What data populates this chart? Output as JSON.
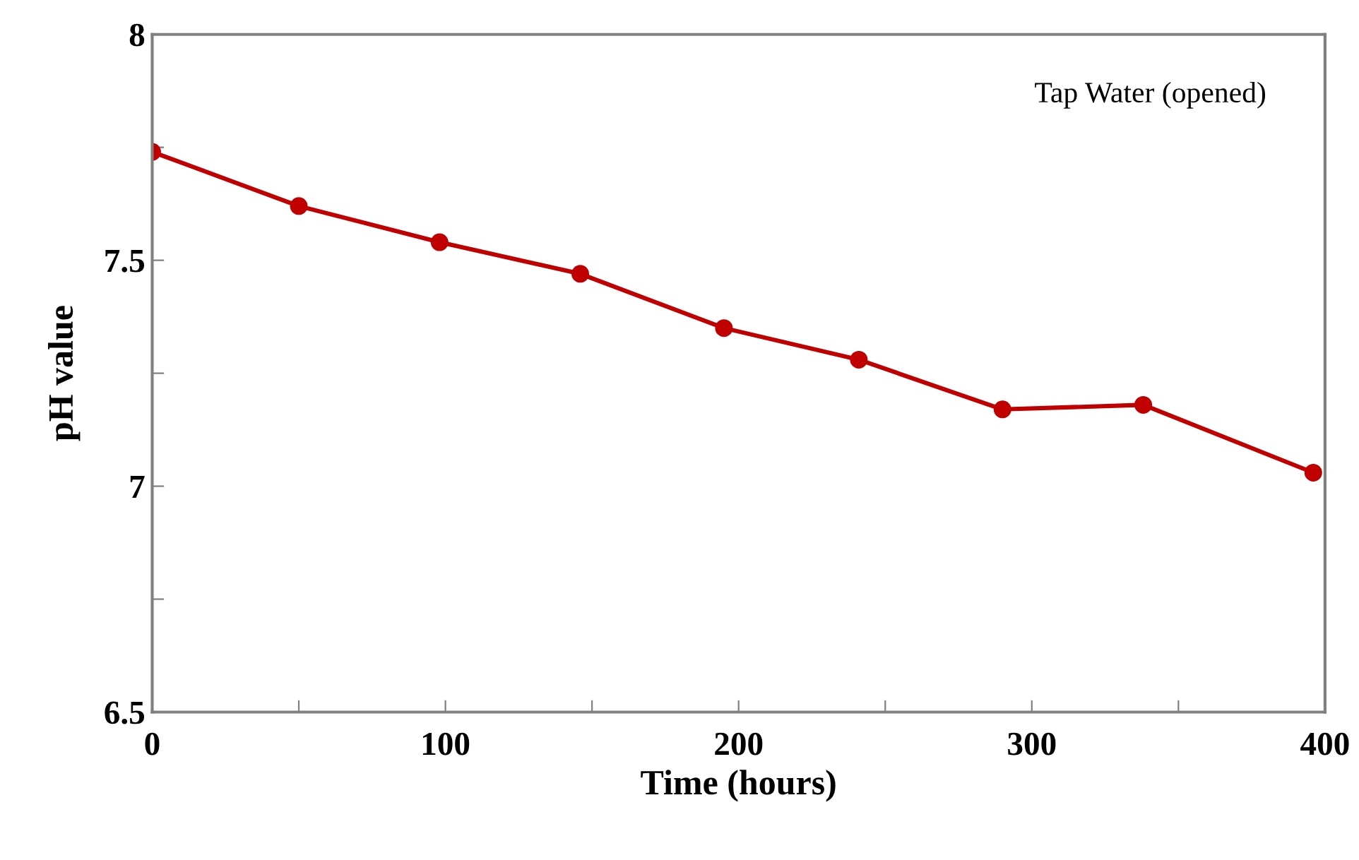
{
  "chart_data": {
    "type": "line",
    "xlabel": "Time (hours)",
    "ylabel": "pH value",
    "annotations": [
      "Tap Water (opened)"
    ],
    "x": [
      0,
      50,
      98,
      146,
      195,
      241,
      290,
      338,
      396
    ],
    "series": [
      {
        "color": "#c00000",
        "values": [
          7.74,
          7.62,
          7.54,
          7.47,
          7.35,
          7.28,
          7.17,
          7.18,
          7.03
        ]
      }
    ],
    "xlim": [
      0,
      400
    ],
    "ylim": [
      6.5,
      8
    ],
    "xticks": [
      0,
      {
        "value": 50,
        "label": null
      },
      100,
      {
        "value": 150,
        "label": null
      },
      200,
      {
        "value": 250,
        "label": null
      },
      300,
      {
        "value": 350,
        "label": null
      },
      400
    ],
    "yticks": [
      6.5,
      {
        "value": 6.75,
        "label": null
      },
      7,
      {
        "value": 7.25,
        "label": null
      },
      7.5,
      {
        "value": 7.75,
        "label": null
      },
      8
    ],
    "grid": false,
    "legend": false,
    "marker": "circle",
    "line_style": "solid"
  }
}
